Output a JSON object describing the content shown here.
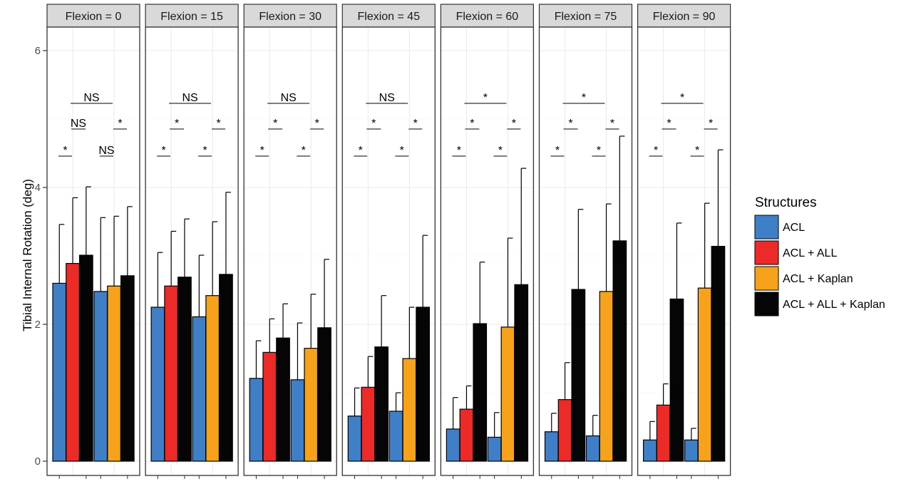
{
  "chart_data": {
    "type": "bar",
    "ylabel": "Tibial Internal Rotation (deg)",
    "xlabel": "",
    "ylim": [
      0,
      6.3
    ],
    "yticks": [
      "0",
      "2",
      "4",
      "6"
    ],
    "grid": true,
    "legend": {
      "title": "Structures",
      "position": "right",
      "entries": [
        "ACL",
        "ACL + ALL",
        "ACL + Kaplan",
        "ACL + ALL + Kaplan"
      ]
    },
    "colors": {
      "ACL": "#3f7fc7",
      "ACL + ALL": "#ec2a27",
      "ACL + Kaplan": "#f7a21b",
      "ACL + ALL + Kaplan": "#050505"
    },
    "panels": [
      {
        "label": "Flexion = 0",
        "groups": [
          {
            "bars": [
              {
                "series": "ACL",
                "value": 2.6,
                "err": 0.86
              },
              {
                "series": "ACL + ALL",
                "value": 2.89,
                "err": 0.96
              },
              {
                "series": "ACL + ALL + Kaplan",
                "value": 3.01,
                "err": 1.0
              }
            ]
          },
          {
            "bars": [
              {
                "series": "ACL",
                "value": 2.48,
                "err": 1.08
              },
              {
                "series": "ACL + Kaplan",
                "value": 2.56,
                "err": 1.02
              },
              {
                "series": "ACL + ALL + Kaplan",
                "value": 2.71,
                "err": 1.01
              }
            ]
          }
        ],
        "annotations": {
          "g1_left": "*",
          "g1_right": "NS",
          "g2_left": "NS",
          "g2_right": "*",
          "top": "NS"
        }
      },
      {
        "label": "Flexion = 15",
        "groups": [
          {
            "bars": [
              {
                "series": "ACL",
                "value": 2.25,
                "err": 0.8
              },
              {
                "series": "ACL + ALL",
                "value": 2.56,
                "err": 0.8
              },
              {
                "series": "ACL + ALL + Kaplan",
                "value": 2.69,
                "err": 0.85
              }
            ]
          },
          {
            "bars": [
              {
                "series": "ACL",
                "value": 2.11,
                "err": 0.9
              },
              {
                "series": "ACL + Kaplan",
                "value": 2.42,
                "err": 1.08
              },
              {
                "series": "ACL + ALL + Kaplan",
                "value": 2.73,
                "err": 1.2
              }
            ]
          }
        ],
        "annotations": {
          "g1_left": "*",
          "g1_right": "*",
          "g2_left": "*",
          "g2_right": "*",
          "top": "NS"
        }
      },
      {
        "label": "Flexion = 30",
        "groups": [
          {
            "bars": [
              {
                "series": "ACL",
                "value": 1.21,
                "err": 0.55
              },
              {
                "series": "ACL + ALL",
                "value": 1.59,
                "err": 0.49
              },
              {
                "series": "ACL + ALL + Kaplan",
                "value": 1.8,
                "err": 0.5
              }
            ]
          },
          {
            "bars": [
              {
                "series": "ACL",
                "value": 1.19,
                "err": 0.83
              },
              {
                "series": "ACL + Kaplan",
                "value": 1.65,
                "err": 0.79
              },
              {
                "series": "ACL + ALL + Kaplan",
                "value": 1.95,
                "err": 1.0
              }
            ]
          }
        ],
        "annotations": {
          "g1_left": "*",
          "g1_right": "*",
          "g2_left": "*",
          "g2_right": "*",
          "top": "NS"
        }
      },
      {
        "label": "Flexion = 45",
        "groups": [
          {
            "bars": [
              {
                "series": "ACL",
                "value": 0.66,
                "err": 0.41
              },
              {
                "series": "ACL + ALL",
                "value": 1.08,
                "err": 0.45
              },
              {
                "series": "ACL + ALL + Kaplan",
                "value": 1.67,
                "err": 0.75
              }
            ]
          },
          {
            "bars": [
              {
                "series": "ACL",
                "value": 0.73,
                "err": 0.27
              },
              {
                "series": "ACL + Kaplan",
                "value": 1.5,
                "err": 0.75
              },
              {
                "series": "ACL + ALL + Kaplan",
                "value": 2.25,
                "err": 1.05
              }
            ]
          }
        ],
        "annotations": {
          "g1_left": "*",
          "g1_right": "*",
          "g2_left": "*",
          "g2_right": "*",
          "top": "NS"
        }
      },
      {
        "label": "Flexion = 60",
        "groups": [
          {
            "bars": [
              {
                "series": "ACL",
                "value": 0.47,
                "err": 0.46
              },
              {
                "series": "ACL + ALL",
                "value": 0.76,
                "err": 0.34
              },
              {
                "series": "ACL + ALL + Kaplan",
                "value": 2.01,
                "err": 0.9
              }
            ]
          },
          {
            "bars": [
              {
                "series": "ACL",
                "value": 0.35,
                "err": 0.36
              },
              {
                "series": "ACL + Kaplan",
                "value": 1.96,
                "err": 1.3
              },
              {
                "series": "ACL + ALL + Kaplan",
                "value": 2.58,
                "err": 1.7
              }
            ]
          }
        ],
        "annotations": {
          "g1_left": "*",
          "g1_right": "*",
          "g2_left": "*",
          "g2_right": "*",
          "top": "*"
        }
      },
      {
        "label": "Flexion = 75",
        "groups": [
          {
            "bars": [
              {
                "series": "ACL",
                "value": 0.43,
                "err": 0.27
              },
              {
                "series": "ACL + ALL",
                "value": 0.9,
                "err": 0.54
              },
              {
                "series": "ACL + ALL + Kaplan",
                "value": 2.51,
                "err": 1.17
              }
            ]
          },
          {
            "bars": [
              {
                "series": "ACL",
                "value": 0.37,
                "err": 0.3
              },
              {
                "series": "ACL + Kaplan",
                "value": 2.48,
                "err": 1.28
              },
              {
                "series": "ACL + ALL + Kaplan",
                "value": 3.22,
                "err": 1.53
              }
            ]
          }
        ],
        "annotations": {
          "g1_left": "*",
          "g1_right": "*",
          "g2_left": "*",
          "g2_right": "*",
          "top": "*"
        }
      },
      {
        "label": "Flexion = 90",
        "groups": [
          {
            "bars": [
              {
                "series": "ACL",
                "value": 0.31,
                "err": 0.27
              },
              {
                "series": "ACL + ALL",
                "value": 0.82,
                "err": 0.31
              },
              {
                "series": "ACL + ALL + Kaplan",
                "value": 2.37,
                "err": 1.11
              }
            ]
          },
          {
            "bars": [
              {
                "series": "ACL",
                "value": 0.31,
                "err": 0.17
              },
              {
                "series": "ACL + Kaplan",
                "value": 2.53,
                "err": 1.24
              },
              {
                "series": "ACL + ALL + Kaplan",
                "value": 3.14,
                "err": 1.41
              }
            ]
          }
        ],
        "annotations": {
          "g1_left": "*",
          "g1_right": "*",
          "g2_left": "*",
          "g2_right": "*",
          "top": "*"
        }
      }
    ]
  }
}
